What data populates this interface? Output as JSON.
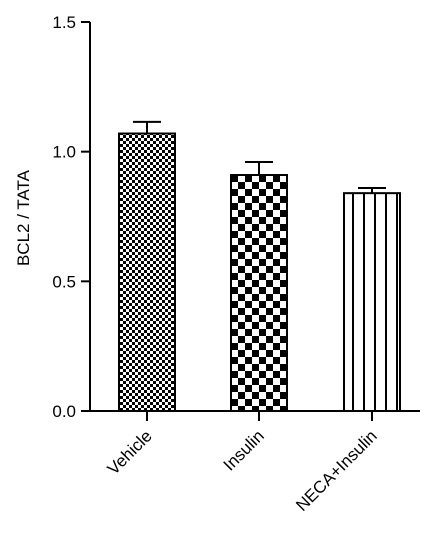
{
  "chart_data": {
    "type": "bar",
    "categories": [
      "Vehicle",
      "Insulin",
      "NECA+Insulin"
    ],
    "values": [
      1.07,
      0.91,
      0.84
    ],
    "errors": [
      0.045,
      0.05,
      0.02
    ],
    "patterns": [
      "fine-checker",
      "coarse-checker",
      "vertical-stripes"
    ],
    "ylabel": "BCL2 / TATA",
    "xlabel": "",
    "title": "",
    "ylim": [
      0,
      1.5
    ],
    "yticks": [
      0.0,
      0.5,
      1.0,
      1.5
    ],
    "ytick_labels": [
      "0.0",
      "0.5",
      "1.0",
      "1.5"
    ],
    "grid": false,
    "legend": "none",
    "colors": {
      "bar_fill": "#000000",
      "bar_bg": "#ffffff",
      "axis": "#000000"
    }
  }
}
